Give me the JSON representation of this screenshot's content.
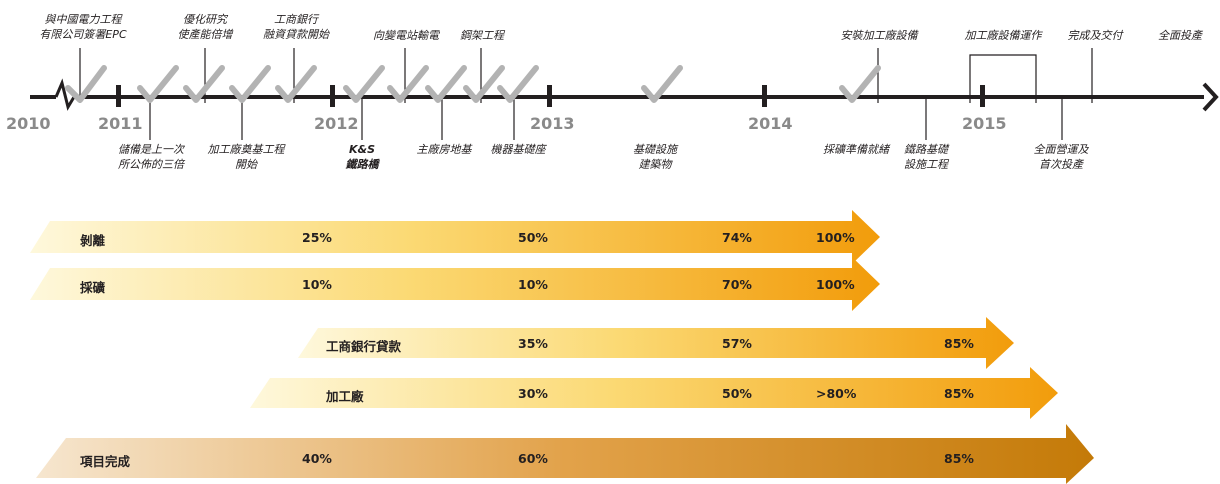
{
  "timeline": {
    "years": [
      "2010",
      "2011",
      "2012",
      "2013",
      "2014",
      "2015"
    ],
    "milestones_above": [
      "與中國電力工程\n有限公司簽署EPC",
      "優化研究\n使產能倍增",
      "工商銀行\n融資貸款開始",
      "向變電站輸電",
      "鋼架工程",
      "安裝加工廠設備",
      "加工廠設備運作",
      "完成及交付",
      "全面投產"
    ],
    "milestones_below": [
      "儲備是上一次\n所公佈的三倍",
      "加工廠奠基工程\n開始",
      "K&S\n鐵路橋",
      "主廠房地基",
      "機器基礎座",
      "基礎設施\n建築物",
      "採礦準備就緒",
      "鐵路基礎\n設施工程",
      "全面營運及\n首次投產"
    ]
  },
  "progress_bars": [
    {
      "label": "剝離",
      "values": [
        "25%",
        "50%",
        "74%",
        "100%"
      ]
    },
    {
      "label": "採礦",
      "values": [
        "10%",
        "10%",
        "70%",
        "100%"
      ]
    },
    {
      "label": "工商銀行貸款",
      "values": [
        "35%",
        "57%",
        "85%"
      ]
    },
    {
      "label": "加工廠",
      "values": [
        "30%",
        "50%",
        ">80%",
        "85%"
      ]
    },
    {
      "label": "項目完成",
      "values": [
        "40%",
        "60%",
        "85%"
      ]
    }
  ],
  "colors": {
    "timeline": "#231f20",
    "check": "#b3b3b3",
    "bar_light": "#fdf4cc",
    "bar_orange": "#f4a40a",
    "bar_final_light": "#f5e3c8",
    "bar_final_dark": "#c77d08"
  }
}
